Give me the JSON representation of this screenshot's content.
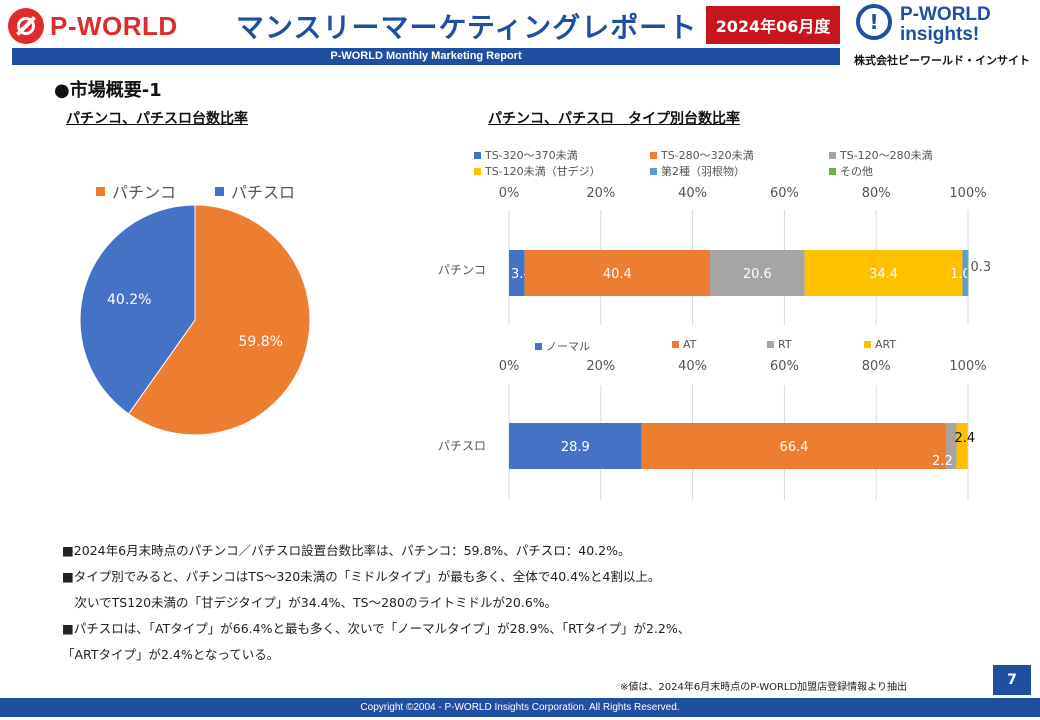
{
  "header": {
    "logo_left": "P-WORLD",
    "title": "マンスリーマーケティングレポート",
    "date_badge": "2024年06月度",
    "logo_right_line1": "P-WORLD",
    "logo_right_line2": "insights!",
    "logo_right_company": "株式会社ピーワールド・インサイト",
    "subtitle": "P-WORLD Monthly Marketing Report"
  },
  "section_title": "●市場概要-1",
  "colors": {
    "blue": "#4472c4",
    "orange": "#ed7d31",
    "gray": "#a5a5a5",
    "yellow": "#ffc000",
    "teal": "#5b9bd5",
    "green": "#70ad47",
    "brand_blue": "#1f4fa0",
    "brand_red": "#c8151b"
  },
  "chart_data": [
    {
      "type": "pie",
      "title": "パチンコ、パチスロ台数比率",
      "categories": [
        "パチンコ",
        "パチスロ"
      ],
      "values": [
        59.8,
        40.2
      ],
      "labels": [
        "59.8%",
        "40.2%"
      ],
      "colors": [
        "#ed7d31",
        "#4472c4"
      ],
      "legend": "top"
    },
    {
      "type": "bar",
      "orientation": "horizontal-stacked",
      "title": "パチンコ、パチスロ　タイプ別台数比率",
      "category": "パチンコ",
      "xlim": [
        0,
        100
      ],
      "ticks": [
        "0%",
        "20%",
        "40%",
        "60%",
        "80%",
        "100%"
      ],
      "series": [
        {
          "name": "TS-320～370未満",
          "value": 3.4,
          "label": "3.4",
          "color": "#4472c4"
        },
        {
          "name": "TS-280～320未満",
          "value": 40.4,
          "label": "40.4",
          "color": "#ed7d31"
        },
        {
          "name": "TS-120～280未満",
          "value": 20.6,
          "label": "20.6",
          "color": "#a5a5a5"
        },
        {
          "name": "TS-120未満（甘デジ）",
          "value": 34.4,
          "label": "34.4",
          "color": "#ffc000"
        },
        {
          "name": "第2種（羽根物）",
          "value": 1.0,
          "label": "1.0",
          "color": "#5b9bd5"
        },
        {
          "name": "その他",
          "value": 0.3,
          "label": "0.3",
          "color": "#70ad47"
        }
      ]
    },
    {
      "type": "bar",
      "orientation": "horizontal-stacked",
      "category": "パチスロ",
      "xlim": [
        0,
        100
      ],
      "ticks": [
        "0%",
        "20%",
        "40%",
        "60%",
        "80%",
        "100%"
      ],
      "series": [
        {
          "name": "ノーマル",
          "value": 28.9,
          "label": "28.9",
          "color": "#4472c4"
        },
        {
          "name": "AT",
          "value": 66.4,
          "label": "66.4",
          "color": "#ed7d31"
        },
        {
          "name": "RT",
          "value": 2.2,
          "label": "2.2",
          "color": "#a5a5a5"
        },
        {
          "name": "ART",
          "value": 2.4,
          "label": "2.4",
          "color": "#ffc000"
        }
      ]
    }
  ],
  "notes": [
    "■2024年6月末時点のパチンコ／パチスロ設置台数比率は、パチンコ：59.8%、パチスロ：40.2%。",
    "■タイプ別でみると、パチンコはTS～320未満の「ミドルタイプ」が最も多く、全体で40.4%と4割以上。",
    "　次いでTS120未満の「甘デジタイプ」が34.4%、TS～280のライトミドルが20.6%。",
    "■パチスロは、「ATタイプ」が66.4%と最も多く、次いで「ノーマルタイプ」が28.9%、「RTタイプ」が2.2%、",
    "「ARTタイプ」が2.4%となっている。"
  ],
  "source_note": "※値は、2024年6月末時点のP-WORLD加盟店登録情報より抽出",
  "page_number": "7",
  "footer": "Copyright ©2004 -  P-WORLD Insights Corporation. All Rights Reserved."
}
